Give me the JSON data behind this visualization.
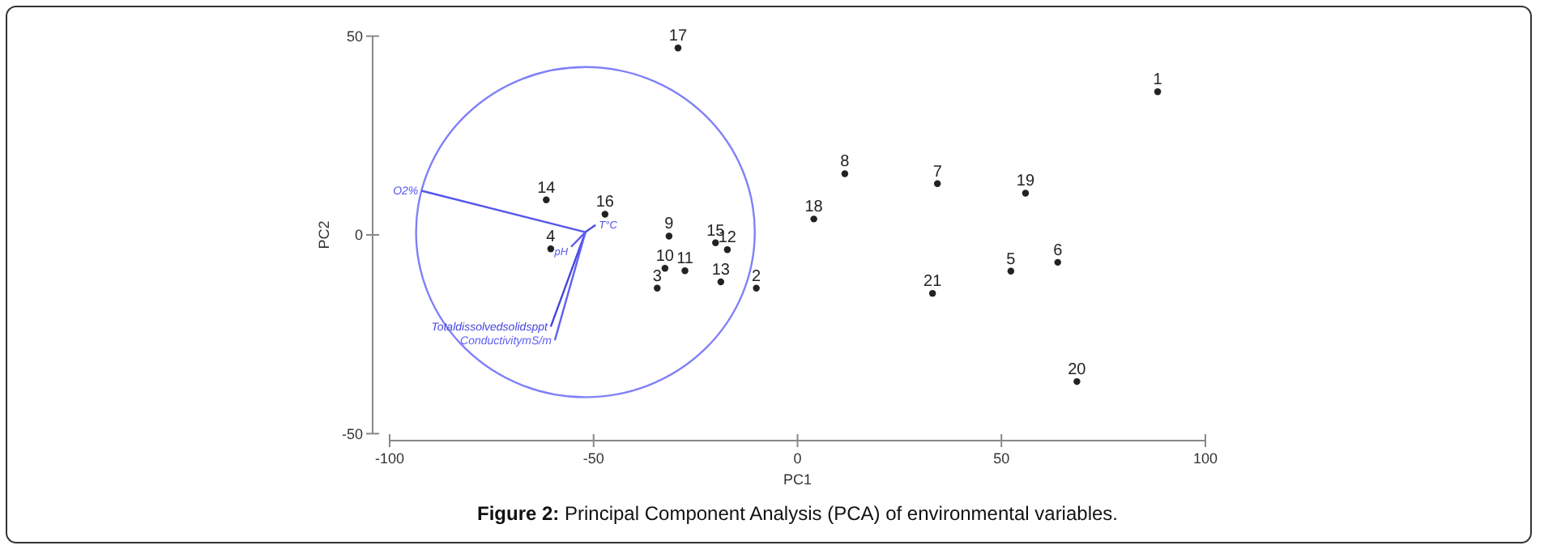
{
  "chart_data": {
    "type": "scatter",
    "xlabel": "PC1",
    "ylabel": "PC2",
    "xlim": [
      -100,
      100
    ],
    "ylim": [
      -50,
      50
    ],
    "xticks": [
      -100,
      -50,
      0,
      50,
      100
    ],
    "yticks": [
      -50,
      0,
      50
    ],
    "annotations": [
      {
        "text": "1",
        "x": 88.3,
        "y": 36
      },
      {
        "text": "2",
        "x": -10.1,
        "y": -13.4
      },
      {
        "text": "3",
        "x": -34.4,
        "y": -13.4
      },
      {
        "text": "4",
        "x": -60.5,
        "y": -3.5
      },
      {
        "text": "5",
        "x": 52.3,
        "y": -9.1
      },
      {
        "text": "6",
        "x": 63.8,
        "y": -6.9
      },
      {
        "text": "7",
        "x": 34.3,
        "y": 12.9
      },
      {
        "text": "8",
        "x": 11.6,
        "y": 15.4
      },
      {
        "text": "9",
        "x": -31.5,
        "y": -0.3
      },
      {
        "text": "10",
        "x": -32.5,
        "y": -8.4
      },
      {
        "text": "11",
        "x": -27.6,
        "y": -9
      },
      {
        "text": "12",
        "x": -17.2,
        "y": -3.7
      },
      {
        "text": "13",
        "x": -18.8,
        "y": -11.8
      },
      {
        "text": "14",
        "x": -61.6,
        "y": 8.8
      },
      {
        "text": "15",
        "x": -20.1,
        "y": -2
      },
      {
        "text": "16",
        "x": -47.2,
        "y": 5.2
      },
      {
        "text": "17",
        "x": -29.3,
        "y": 47
      },
      {
        "text": "18",
        "x": 4,
        "y": 4
      },
      {
        "text": "19",
        "x": 55.9,
        "y": 10.5
      },
      {
        "text": "20",
        "x": 68.5,
        "y": -36.9
      },
      {
        "text": "21",
        "x": 33.1,
        "y": -14.7
      },
      "Figure 2: Principal Component Analysis (PCA) of environmental variables."
    ],
    "series": [
      {
        "type": "scatter",
        "marker": "circle",
        "color": "#222222",
        "x": [
          88.3,
          -10.1,
          -34.4,
          -60.5,
          52.3,
          63.8,
          34.3,
          11.6,
          -31.5,
          -32.5,
          -27.6,
          -17.2,
          -18.8,
          -61.6,
          -20.1,
          -47.2,
          -29.3,
          4,
          55.9,
          68.5,
          33.1
        ],
        "values": [
          36,
          -13.4,
          -13.4,
          -3.5,
          -9.1,
          -6.9,
          12.9,
          15.4,
          -0.3,
          -8.4,
          -9,
          -3.7,
          -11.8,
          8.8,
          -2,
          5.2,
          47,
          4,
          10.5,
          -36.9,
          -14.7
        ]
      },
      {
        "type": "line",
        "name": "O2%",
        "color": "#5555ee",
        "x": [
          -52,
          -92.2
        ],
        "values": [
          0.7,
          11.1
        ]
      },
      {
        "type": "line",
        "name": "T°C",
        "color": "#4d4de6",
        "x": [
          -52,
          -49.5
        ],
        "values": [
          0.7,
          2.5
        ]
      },
      {
        "type": "line",
        "name": "pH",
        "color": "#5a5af0",
        "x": [
          -52,
          -55.5
        ],
        "values": [
          0.7,
          -3
        ]
      },
      {
        "type": "line",
        "name": "Totaldissolvedsolidsppt",
        "color": "#4444dd",
        "x": [
          -52,
          -60.5
        ],
        "values": [
          0.7,
          -23.1
        ]
      },
      {
        "type": "line",
        "name": "ConductivitymS/m",
        "color": "#6060f5",
        "x": [
          -52,
          -59.5
        ],
        "values": [
          0.7,
          -26.5
        ]
      }
    ]
  }
}
